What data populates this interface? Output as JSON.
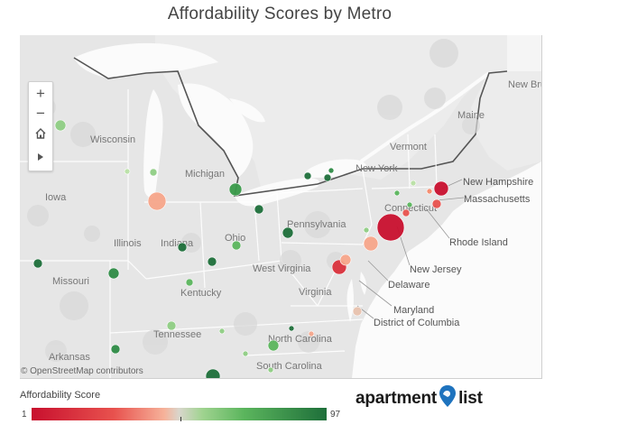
{
  "title": "Affordability Scores by Metro",
  "map": {
    "attribution": "© OpenStreetMap contributors",
    "controls": [
      {
        "name": "zoom-in-button",
        "glyph": "+"
      },
      {
        "name": "zoom-out-button",
        "glyph": "−"
      },
      {
        "name": "home-button",
        "icon": "home-icon"
      },
      {
        "name": "expand-button",
        "icon": "play-arrow-icon"
      }
    ],
    "place_labels": [
      {
        "name": "Wisconsin"
      },
      {
        "name": "Michigan"
      },
      {
        "name": "Iowa"
      },
      {
        "name": "Illinois"
      },
      {
        "name": "Indiana"
      },
      {
        "name": "Ohio"
      },
      {
        "name": "Pennsylvania"
      },
      {
        "name": "New York"
      },
      {
        "name": "Vermont"
      },
      {
        "name": "Maine"
      },
      {
        "name": "New Brunswick"
      },
      {
        "name": "New Hampshire"
      },
      {
        "name": "Massachusetts"
      },
      {
        "name": "Connecticut"
      },
      {
        "name": "Rhode Island"
      },
      {
        "name": "New Jersey"
      },
      {
        "name": "Delaware"
      },
      {
        "name": "Maryland"
      },
      {
        "name": "District of Columbia"
      },
      {
        "name": "Missouri"
      },
      {
        "name": "Kentucky"
      },
      {
        "name": "West Virginia"
      },
      {
        "name": "Virginia"
      },
      {
        "name": "Tennessee"
      },
      {
        "name": "North Carolina"
      },
      {
        "name": "Arkansas"
      },
      {
        "name": "South Carolina"
      }
    ],
    "callout_labels": [
      "New Hampshire",
      "Massachusetts",
      "Rhode Island",
      "New Jersey",
      "Delaware",
      "Maryland",
      "District of Columbia"
    ],
    "markers": [
      {
        "score_category": "high",
        "color": "#8fce84"
      },
      {
        "score_category": "high",
        "color": "#b9e0a5"
      },
      {
        "score_category": "high",
        "color": "#8fce84"
      },
      {
        "score_category": "very-low",
        "color": "#f7a58a"
      },
      {
        "score_category": "very-high",
        "color": "#3a9a4a"
      },
      {
        "score_category": "very-high",
        "color": "#1e6f3a"
      },
      {
        "score_category": "very-high",
        "color": "#1e6f3a"
      },
      {
        "score_category": "high",
        "color": "#5bb55d"
      },
      {
        "score_category": "very-high",
        "color": "#1e6f3a"
      },
      {
        "score_category": "very-high",
        "color": "#1e6f3a"
      },
      {
        "score_category": "high",
        "color": "#5bb55d"
      },
      {
        "score_category": "very-high",
        "color": "#2e8b46"
      },
      {
        "score_category": "very-high",
        "color": "#1e6f3a"
      },
      {
        "score_category": "very-high",
        "color": "#1e6f3a"
      },
      {
        "score_category": "very-high",
        "color": "#1e6f3a"
      },
      {
        "score_category": "high",
        "color": "#8fce84"
      },
      {
        "score_category": "very-low",
        "color": "#c8102e"
      },
      {
        "score_category": "low",
        "color": "#e8524e"
      },
      {
        "score_category": "low",
        "color": "#f58a6c"
      },
      {
        "score_category": "very-low",
        "color": "#c8102e"
      },
      {
        "score_category": "low",
        "color": "#e8524e"
      },
      {
        "score_category": "low",
        "color": "#f7a58a"
      },
      {
        "score_category": "very-low",
        "color": "#d9303b"
      },
      {
        "score_category": "low",
        "color": "#f7a58a"
      },
      {
        "score_category": "mid",
        "color": "#e8c2ae"
      },
      {
        "score_category": "high",
        "color": "#5bb55d"
      },
      {
        "score_category": "high",
        "color": "#b9e0a5"
      },
      {
        "score_category": "very-high",
        "color": "#2e8b46"
      },
      {
        "score_category": "high",
        "color": "#8fce84"
      },
      {
        "score_category": "very-high",
        "color": "#1e6f3a"
      },
      {
        "score_category": "low",
        "color": "#f4a78c"
      },
      {
        "score_category": "high",
        "color": "#8fce84"
      },
      {
        "score_category": "high",
        "color": "#5bb55d"
      },
      {
        "score_category": "very-high",
        "color": "#2e8b46"
      },
      {
        "score_category": "high",
        "color": "#8fce84"
      },
      {
        "score_category": "high",
        "color": "#8fce84"
      },
      {
        "score_category": "very-high",
        "color": "#1e6f3a"
      },
      {
        "score_category": "high",
        "color": "#5bb55d"
      }
    ]
  },
  "legend": {
    "title": "Affordability Score",
    "min": "1",
    "max": "97",
    "colors": {
      "low": "#c8102e",
      "mid": "#d9d6cc",
      "high": "#1e6f3a"
    }
  },
  "logo": {
    "left": "apartment",
    "right": "list",
    "pin_color": "#1e73be"
  }
}
